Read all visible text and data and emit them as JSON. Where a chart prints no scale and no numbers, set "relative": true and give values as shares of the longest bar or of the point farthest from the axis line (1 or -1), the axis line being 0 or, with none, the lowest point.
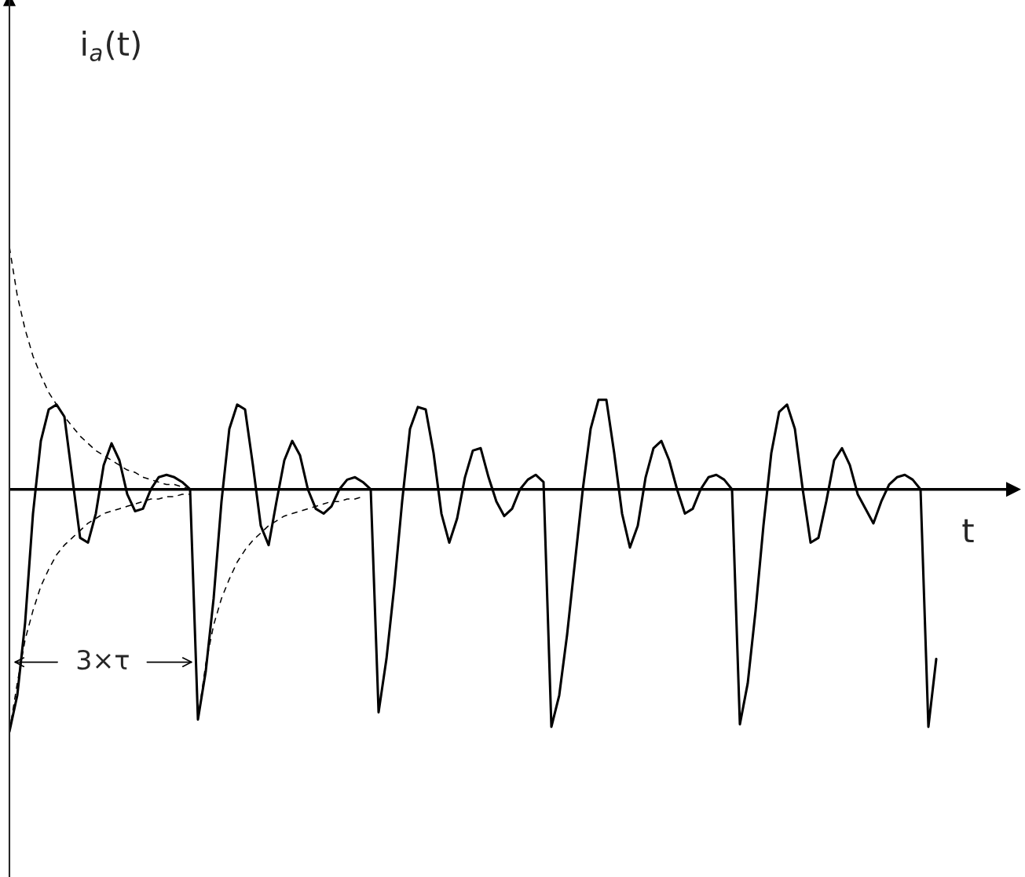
{
  "chart_data": {
    "type": "line",
    "relative": true,
    "xlabel": "t",
    "legend": false,
    "marker": "none",
    "annotations": [
      "i$_{a}$(t)",
      "3×τ"
    ],
    "categories": [
      null,
      null,
      null,
      null,
      null,
      null,
      null,
      null,
      null,
      null,
      null,
      null,
      null,
      null,
      null,
      null,
      null,
      null,
      null,
      null,
      null,
      null,
      null,
      null,
      null,
      null,
      null,
      null,
      null,
      null,
      null,
      null,
      null,
      null,
      null,
      null,
      null,
      null,
      null,
      null,
      null,
      null,
      null,
      null,
      null,
      null,
      null,
      null,
      null,
      null,
      null,
      null,
      null,
      null,
      null,
      null,
      null,
      null,
      null,
      null,
      null,
      null,
      null,
      null,
      null,
      null,
      null,
      null,
      null,
      null,
      null,
      null,
      null,
      null,
      null,
      null,
      null,
      null,
      null,
      null,
      null,
      null,
      null,
      null,
      null,
      null,
      null,
      null,
      null,
      null,
      null,
      null,
      null,
      null,
      null,
      null,
      null,
      null,
      null,
      null,
      null,
      null,
      null,
      null,
      null,
      null,
      null,
      null,
      null,
      null,
      null,
      null,
      null,
      null,
      null,
      null,
      null,
      null,
      null
    ],
    "series": [
      {
        "color": "#000000",
        "line_style": "solid",
        "values": [
          -1.0,
          -0.85,
          -0.55,
          -0.1,
          0.2,
          0.33,
          0.35,
          0.3,
          0.05,
          -0.2,
          -0.22,
          -0.1,
          0.1,
          0.19,
          0.12,
          -0.02,
          -0.09,
          -0.08,
          0.0,
          0.05,
          0.06,
          0.05,
          0.03,
          0.0,
          -0.95,
          -0.75,
          -0.45,
          -0.05,
          0.25,
          0.35,
          0.33,
          0.1,
          -0.15,
          -0.23,
          -0.05,
          0.12,
          0.2,
          0.14,
          0.0,
          -0.08,
          -0.1,
          -0.07,
          0.0,
          0.04,
          0.05,
          0.03,
          0.0,
          -0.92,
          -0.7,
          -0.4,
          -0.05,
          0.25,
          0.34,
          0.33,
          0.15,
          -0.1,
          -0.22,
          -0.12,
          0.05,
          0.16,
          0.17,
          0.05,
          -0.05,
          -0.11,
          -0.08,
          0.0,
          0.04,
          0.06,
          0.03,
          -0.98,
          -0.85,
          -0.6,
          -0.3,
          0.0,
          0.25,
          0.37,
          0.37,
          0.15,
          -0.1,
          -0.24,
          -0.15,
          0.05,
          0.17,
          0.2,
          0.12,
          0.0,
          -0.1,
          -0.08,
          0.0,
          0.05,
          0.06,
          0.04,
          0.0,
          -0.97,
          -0.8,
          -0.5,
          -0.15,
          0.15,
          0.32,
          0.35,
          0.25,
          0.0,
          -0.22,
          -0.2,
          -0.05,
          0.12,
          0.17,
          0.1,
          -0.02,
          -0.08,
          -0.14,
          -0.05,
          0.02,
          0.05,
          0.06,
          0.04,
          0.0,
          -0.98,
          -0.7
        ]
      },
      {
        "color": "#000000",
        "line_style": "dashed",
        "values": [
          1.0,
          0.8,
          0.66,
          0.55,
          0.47,
          0.4,
          0.35,
          0.3,
          0.26,
          0.22,
          0.19,
          0.16,
          0.14,
          0.12,
          0.1,
          0.08,
          0.07,
          0.05,
          0.04,
          0.03,
          0.02,
          0.02,
          0.01,
          0.0,
          null,
          null,
          null,
          null,
          null,
          null,
          null,
          null,
          null,
          null,
          null,
          null,
          null,
          null,
          null,
          null,
          null,
          null,
          null,
          null,
          null,
          null,
          null,
          null,
          null,
          null,
          null,
          null,
          null,
          null,
          null,
          null,
          null,
          null,
          null,
          null,
          null,
          null,
          null,
          null,
          null,
          null,
          null,
          null,
          null,
          null,
          null,
          null,
          null,
          null,
          null,
          null,
          null,
          null,
          null,
          null,
          null,
          null,
          null,
          null,
          null,
          null,
          null,
          null,
          null,
          null,
          null,
          null,
          null,
          null,
          null,
          null,
          null,
          null,
          null,
          null,
          null,
          null,
          null,
          null,
          null,
          null,
          null,
          null,
          null,
          null,
          null,
          null,
          null,
          null,
          null,
          null,
          null,
          null,
          null
        ]
      },
      {
        "color": "#000000",
        "line_style": "dashed",
        "values": [
          -1.0,
          -0.8,
          -0.62,
          -0.5,
          -0.4,
          -0.33,
          -0.27,
          -0.23,
          -0.2,
          -0.17,
          -0.14,
          -0.12,
          -0.1,
          -0.09,
          -0.08,
          -0.07,
          -0.06,
          -0.05,
          -0.04,
          -0.04,
          -0.03,
          -0.03,
          -0.02,
          -0.02,
          null,
          null,
          null,
          null,
          null,
          null,
          null,
          null,
          null,
          null,
          null,
          null,
          null,
          null,
          null,
          null,
          null,
          null,
          null,
          null,
          null,
          null,
          null,
          null,
          null,
          null,
          null,
          null,
          null,
          null,
          null,
          null,
          null,
          null,
          null,
          null,
          null,
          null,
          null,
          null,
          null,
          null,
          null,
          null,
          null,
          null,
          null,
          null,
          null,
          null,
          null,
          null,
          null,
          null,
          null,
          null,
          null,
          null,
          null,
          null,
          null,
          null,
          null,
          null,
          null,
          null,
          null,
          null,
          null,
          null,
          null,
          null,
          null,
          null,
          null,
          null,
          null,
          null,
          null,
          null,
          null,
          null,
          null,
          null,
          null,
          null,
          null,
          null,
          null,
          null,
          null,
          null,
          null,
          null,
          null
        ]
      },
      {
        "color": "#000000",
        "line_style": "dashed",
        "values": [
          null,
          null,
          null,
          null,
          null,
          null,
          null,
          null,
          null,
          null,
          null,
          null,
          null,
          null,
          null,
          null,
          null,
          null,
          null,
          null,
          null,
          null,
          null,
          null,
          -0.95,
          -0.72,
          -0.56,
          -0.45,
          -0.37,
          -0.3,
          -0.25,
          -0.21,
          -0.18,
          -0.15,
          -0.13,
          -0.11,
          -0.1,
          -0.09,
          -0.08,
          -0.07,
          -0.06,
          -0.05,
          -0.05,
          -0.04,
          -0.04,
          -0.03,
          null,
          null,
          null,
          null,
          null,
          null,
          null,
          null,
          null,
          null,
          null,
          null,
          null,
          null,
          null,
          null,
          null,
          null,
          null,
          null,
          null,
          null,
          null,
          null,
          null,
          null,
          null,
          null,
          null,
          null,
          null,
          null,
          null,
          null,
          null,
          null,
          null,
          null,
          null,
          null,
          null,
          null,
          null,
          null,
          null,
          null,
          null,
          null,
          null,
          null,
          null,
          null,
          null,
          null,
          null,
          null,
          null,
          null,
          null,
          null,
          null,
          null,
          null,
          null,
          null,
          null,
          null,
          null,
          null,
          null,
          null,
          null,
          null
        ]
      }
    ]
  }
}
